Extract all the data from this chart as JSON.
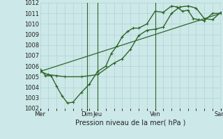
{
  "xlabel": "Pression niveau de la mer( hPa )",
  "ylim": [
    1002,
    1012
  ],
  "yticks": [
    1002,
    1003,
    1004,
    1005,
    1006,
    1007,
    1008,
    1009,
    1010,
    1011,
    1012
  ],
  "background_color": "#cce8e8",
  "grid_color": "#aacece",
  "line_color": "#2d6628",
  "lines": [
    {
      "x": [
        0,
        0.33,
        0.67,
        1.0,
        1.33,
        1.67,
        2.0,
        2.5,
        3.0,
        3.5,
        4.0,
        4.33,
        4.67,
        5.0,
        5.33,
        5.67,
        6.0,
        6.5,
        7.0,
        7.5,
        8.0,
        8.33,
        8.67,
        9.0,
        9.33,
        9.67,
        10.0,
        10.5,
        11.0
      ],
      "y": [
        1005.7,
        1005.1,
        1005.1,
        1004.1,
        1003.2,
        1002.5,
        1002.6,
        1003.5,
        1004.3,
        1005.5,
        1006.0,
        1007.2,
        1007.9,
        1008.8,
        1009.3,
        1009.6,
        1009.6,
        1010.0,
        1011.2,
        1011.1,
        1011.7,
        1011.6,
        1011.2,
        1011.3,
        1010.5,
        1010.4,
        1010.3,
        1011.0,
        1011.0
      ],
      "marker": "+",
      "markersize": 3.5,
      "linewidth": 1.0
    },
    {
      "x": [
        0,
        0.5,
        1.0,
        1.5,
        2.5,
        3.5,
        4.5,
        5.0,
        5.5,
        6.0,
        6.5,
        7.0,
        7.5,
        8.0,
        8.5,
        9.0,
        9.5,
        10.0,
        10.5,
        11.0
      ],
      "y": [
        1005.5,
        1005.2,
        1005.1,
        1005.0,
        1005.0,
        1005.2,
        1006.3,
        1006.7,
        1007.6,
        1008.9,
        1009.4,
        1009.5,
        1009.7,
        1011.0,
        1011.6,
        1011.7,
        1011.5,
        1010.5,
        1010.4,
        1011.1
      ],
      "marker": "+",
      "markersize": 3.5,
      "linewidth": 1.0
    },
    {
      "x": [
        0,
        11.0
      ],
      "y": [
        1005.5,
        1011.0
      ],
      "marker": null,
      "markersize": 0,
      "linewidth": 0.9
    }
  ],
  "vlines_x": [
    2.85,
    3.5,
    7.0,
    11.0
  ],
  "xtick_labels": [
    "Mer",
    "Dim",
    "Jeu",
    "Ven",
    "Sam"
  ],
  "xtick_x": [
    0.0,
    2.85,
    3.5,
    7.0,
    11.0
  ],
  "figsize": [
    3.2,
    2.0
  ],
  "dpi": 100
}
